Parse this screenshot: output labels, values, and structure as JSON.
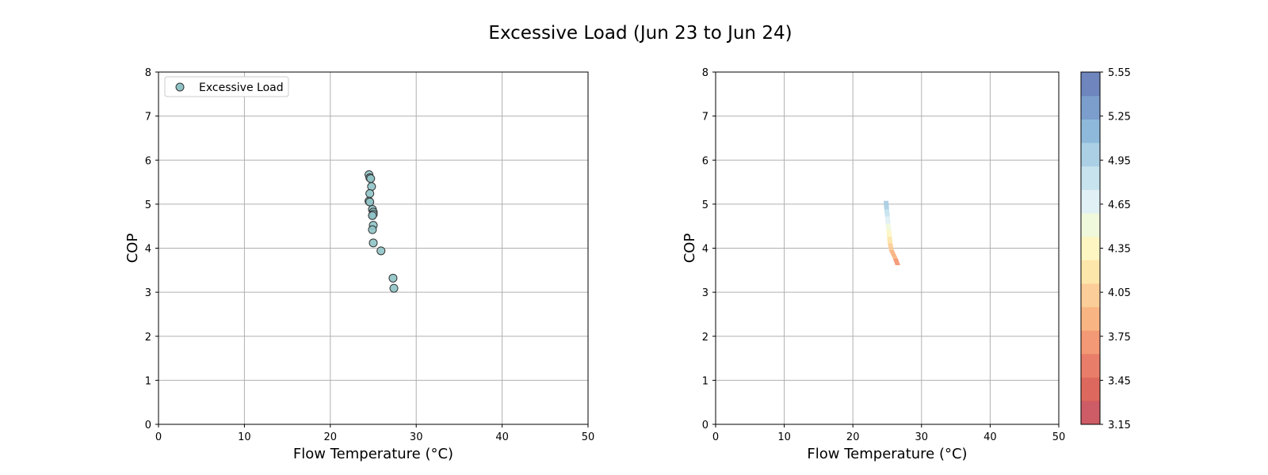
{
  "title": "Excessive Load (Jun 23 to Jun 24)",
  "chart_data": [
    {
      "type": "scatter",
      "xlabel": "Flow Temperature (°C)",
      "ylabel": "COP",
      "xlim": [
        0,
        50
      ],
      "ylim": [
        0,
        8
      ],
      "xticks": [
        0,
        10,
        20,
        30,
        40,
        50
      ],
      "yticks": [
        0,
        1,
        2,
        3,
        4,
        5,
        6,
        7,
        8
      ],
      "grid": true,
      "legend_position": "top-left",
      "series": [
        {
          "name": "Excessive Load",
          "color": "#8fc3c6",
          "edge_color": "#333333",
          "points": [
            {
              "x": 24.5,
              "y": 5.67
            },
            {
              "x": 24.6,
              "y": 5.6
            },
            {
              "x": 24.7,
              "y": 5.58
            },
            {
              "x": 24.8,
              "y": 5.4
            },
            {
              "x": 24.6,
              "y": 5.24
            },
            {
              "x": 24.5,
              "y": 5.07
            },
            {
              "x": 24.6,
              "y": 5.05
            },
            {
              "x": 24.9,
              "y": 4.88
            },
            {
              "x": 25.0,
              "y": 4.82
            },
            {
              "x": 25.0,
              "y": 4.77
            },
            {
              "x": 24.9,
              "y": 4.74
            },
            {
              "x": 25.0,
              "y": 4.52
            },
            {
              "x": 24.9,
              "y": 4.42
            },
            {
              "x": 25.0,
              "y": 4.12
            },
            {
              "x": 25.9,
              "y": 3.94
            },
            {
              "x": 27.3,
              "y": 3.32
            },
            {
              "x": 27.4,
              "y": 3.09
            }
          ]
        }
      ]
    },
    {
      "type": "contour",
      "xlabel": "Flow Temperature (°C)",
      "ylabel": "COP",
      "xlim": [
        0,
        50
      ],
      "ylim": [
        0,
        8
      ],
      "xticks": [
        0,
        10,
        20,
        30,
        40,
        50
      ],
      "yticks": [
        0,
        1,
        2,
        3,
        4,
        5,
        6,
        7,
        8
      ],
      "grid": true,
      "colorbar": {
        "min": 3.15,
        "max": 5.55,
        "ticks": [
          "3.15",
          "3.45",
          "3.75",
          "4.05",
          "4.35",
          "4.65",
          "4.95",
          "5.25",
          "5.55"
        ],
        "colors": [
          "#c94a57",
          "#d9594c",
          "#e6705a",
          "#f28e66",
          "#f7ad76",
          "#fbc98e",
          "#fde3a1",
          "#fdf5bd",
          "#f0f8d8",
          "#ddeef3",
          "#c0e0ec",
          "#a2cbe2",
          "#83b1d6",
          "#6d94c6",
          "#5e78b6"
        ]
      },
      "trace": [
        {
          "x": 24.8,
          "y": 5.07
        },
        {
          "x": 24.9,
          "y": 4.88
        },
        {
          "x": 25.0,
          "y": 4.72
        },
        {
          "x": 25.1,
          "y": 4.55
        },
        {
          "x": 25.2,
          "y": 4.4
        },
        {
          "x": 25.3,
          "y": 4.25
        },
        {
          "x": 25.4,
          "y": 4.1
        },
        {
          "x": 25.6,
          "y": 3.95
        },
        {
          "x": 25.9,
          "y": 3.85
        },
        {
          "x": 26.2,
          "y": 3.75
        },
        {
          "x": 26.5,
          "y": 3.62
        }
      ]
    }
  ]
}
